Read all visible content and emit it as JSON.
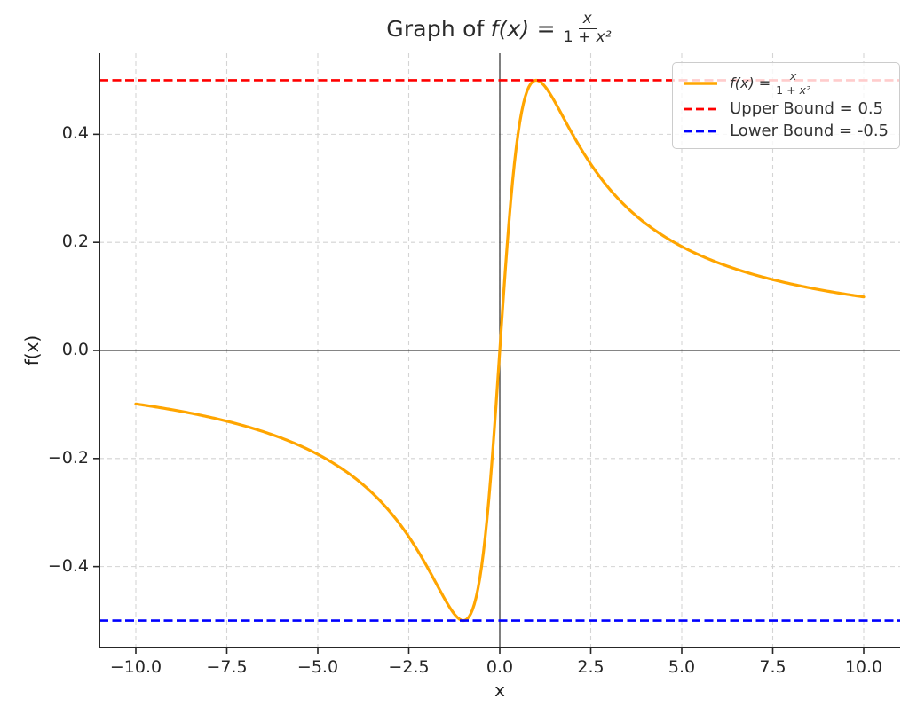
{
  "figure": {
    "title": {
      "plain": "Graph of ",
      "math": "f(x) =",
      "frac_num": "x",
      "frac_den_plain": "1 + ",
      "frac_den_var": "x²"
    },
    "xlabel": "x",
    "ylabel": "f(x)"
  },
  "legend": {
    "position": "upper right",
    "entries": [
      {
        "kind": "curve",
        "prefix": "f(x) =",
        "frac_num": "x",
        "frac_den_plain": "1 + ",
        "frac_den_var": "x²",
        "color": "#FFA500",
        "linestyle": "solid"
      },
      {
        "kind": "hline",
        "label": "Upper Bound = 0.5",
        "color": "#FF0000",
        "linestyle": "dashed"
      },
      {
        "kind": "hline",
        "label": "Lower Bound = -0.5",
        "color": "#0000FF",
        "linestyle": "dashed"
      }
    ]
  },
  "chart_data": {
    "type": "line",
    "title": "Graph of f(x) = x/(1+x^2)",
    "xlabel": "x",
    "ylabel": "f(x)",
    "xlim": [
      -11,
      11
    ],
    "ylim": [
      -0.55,
      0.55
    ],
    "x_ticks": [
      -10.0,
      -7.5,
      -5.0,
      -2.5,
      0.0,
      2.5,
      5.0,
      7.5,
      10.0
    ],
    "x_tick_labels": [
      "−10.0",
      "−7.5",
      "−5.0",
      "−2.5",
      "0.0",
      "2.5",
      "5.0",
      "7.5",
      "10.0"
    ],
    "y_ticks": [
      -0.4,
      -0.2,
      0.0,
      0.2,
      0.4
    ],
    "y_tick_labels": [
      "−0.4",
      "−0.2",
      "0.0",
      "0.2",
      "0.4"
    ],
    "grid": true,
    "grid_color": "#d4d4d4",
    "grid_linestyle": "dashed",
    "spine_color": "#262626",
    "axis_ref_line_color": "#3c3c3c",
    "legend_position": "upper right",
    "series": [
      {
        "name": "f(x) = x/(1+x^2)",
        "kind": "function",
        "formula_js": "x/(1+x*x)",
        "x_range": [
          -10,
          10
        ],
        "samples": 401,
        "color": "#FFA500",
        "linewidth": 3.2,
        "linestyle": "solid",
        "key_points": [
          {
            "x": -10,
            "y": -0.099
          },
          {
            "x": -5,
            "y": -0.1923
          },
          {
            "x": -2,
            "y": -0.4
          },
          {
            "x": -1,
            "y": -0.5
          },
          {
            "x": -0.5,
            "y": -0.4
          },
          {
            "x": 0,
            "y": 0
          },
          {
            "x": 0.5,
            "y": 0.4
          },
          {
            "x": 1,
            "y": 0.5
          },
          {
            "x": 2,
            "y": 0.4
          },
          {
            "x": 5,
            "y": 0.1923
          },
          {
            "x": 10,
            "y": 0.099
          }
        ]
      },
      {
        "name": "Upper Bound = 0.5",
        "kind": "hline",
        "y": 0.5,
        "color": "#FF0000",
        "linewidth": 2.6,
        "linestyle": "dashed"
      },
      {
        "name": "Lower Bound = -0.5",
        "kind": "hline",
        "y": -0.5,
        "color": "#0000FF",
        "linewidth": 2.6,
        "linestyle": "dashed"
      }
    ],
    "reference_lines": [
      {
        "kind": "axhline",
        "y": 0
      },
      {
        "kind": "axvline",
        "x": 0
      }
    ]
  }
}
